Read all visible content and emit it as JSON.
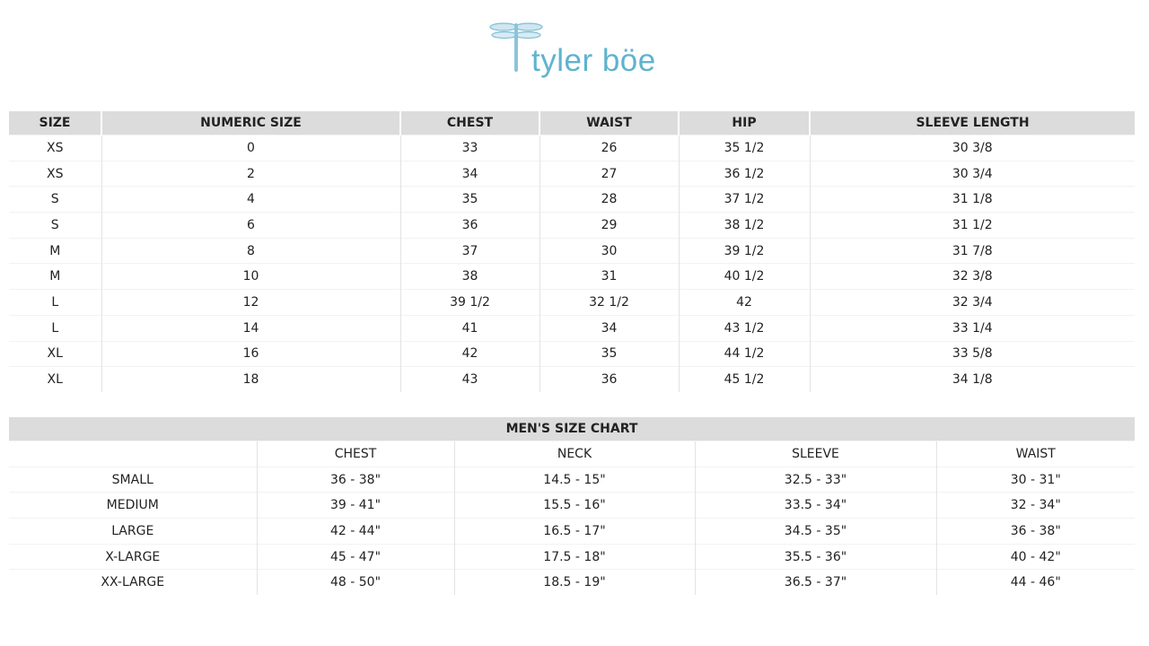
{
  "brand": {
    "name": "tyler böe",
    "logo_color": "#5fb3cf"
  },
  "women_table": {
    "headers": [
      "SIZE",
      "NUMERIC SIZE",
      "CHEST",
      "WAIST",
      "HIP",
      "SLEEVE LENGTH"
    ],
    "rows": [
      [
        "XS",
        "0",
        "33",
        "26",
        "35 1/2",
        "30 3/8"
      ],
      [
        "XS",
        "2",
        "34",
        "27",
        "36 1/2",
        "30 3/4"
      ],
      [
        "S",
        "4",
        "35",
        "28",
        "37 1/2",
        "31 1/8"
      ],
      [
        "S",
        "6",
        "36",
        "29",
        "38 1/2",
        "31 1/2"
      ],
      [
        "M",
        "8",
        "37",
        "30",
        "39 1/2",
        "31 7/8"
      ],
      [
        "M",
        "10",
        "38",
        "31",
        "40 1/2",
        "32 3/8"
      ],
      [
        "L",
        "12",
        "39 1/2",
        "32 1/2",
        "42",
        "32 3/4"
      ],
      [
        "L",
        "14",
        "41",
        "34",
        "43 1/2",
        "33 1/4"
      ],
      [
        "XL",
        "16",
        "42",
        "35",
        "44 1/2",
        "33 5/8"
      ],
      [
        "XL",
        "18",
        "43",
        "36",
        "45 1/2",
        "34 1/8"
      ]
    ]
  },
  "men_table": {
    "title": "MEN'S SIZE CHART",
    "headers": [
      "",
      "CHEST",
      "NECK",
      "SLEEVE",
      "WAIST"
    ],
    "rows": [
      [
        "SMALL",
        "36 - 38\"",
        "14.5 - 15\"",
        "32.5 - 33\"",
        "30 - 31\""
      ],
      [
        "MEDIUM",
        "39 - 41\"",
        "15.5 - 16\"",
        "33.5 - 34\"",
        "32 - 34\""
      ],
      [
        "LARGE",
        "42 - 44\"",
        "16.5 - 17\"",
        "34.5 - 35\"",
        "36 - 38\""
      ],
      [
        "X-LARGE",
        "45 - 47\"",
        "17.5 - 18\"",
        "35.5 - 36\"",
        "40 - 42\""
      ],
      [
        "XX-LARGE",
        "48 - 50\"",
        "18.5 - 19\"",
        "36.5 - 37\"",
        "44 - 46\""
      ]
    ]
  }
}
